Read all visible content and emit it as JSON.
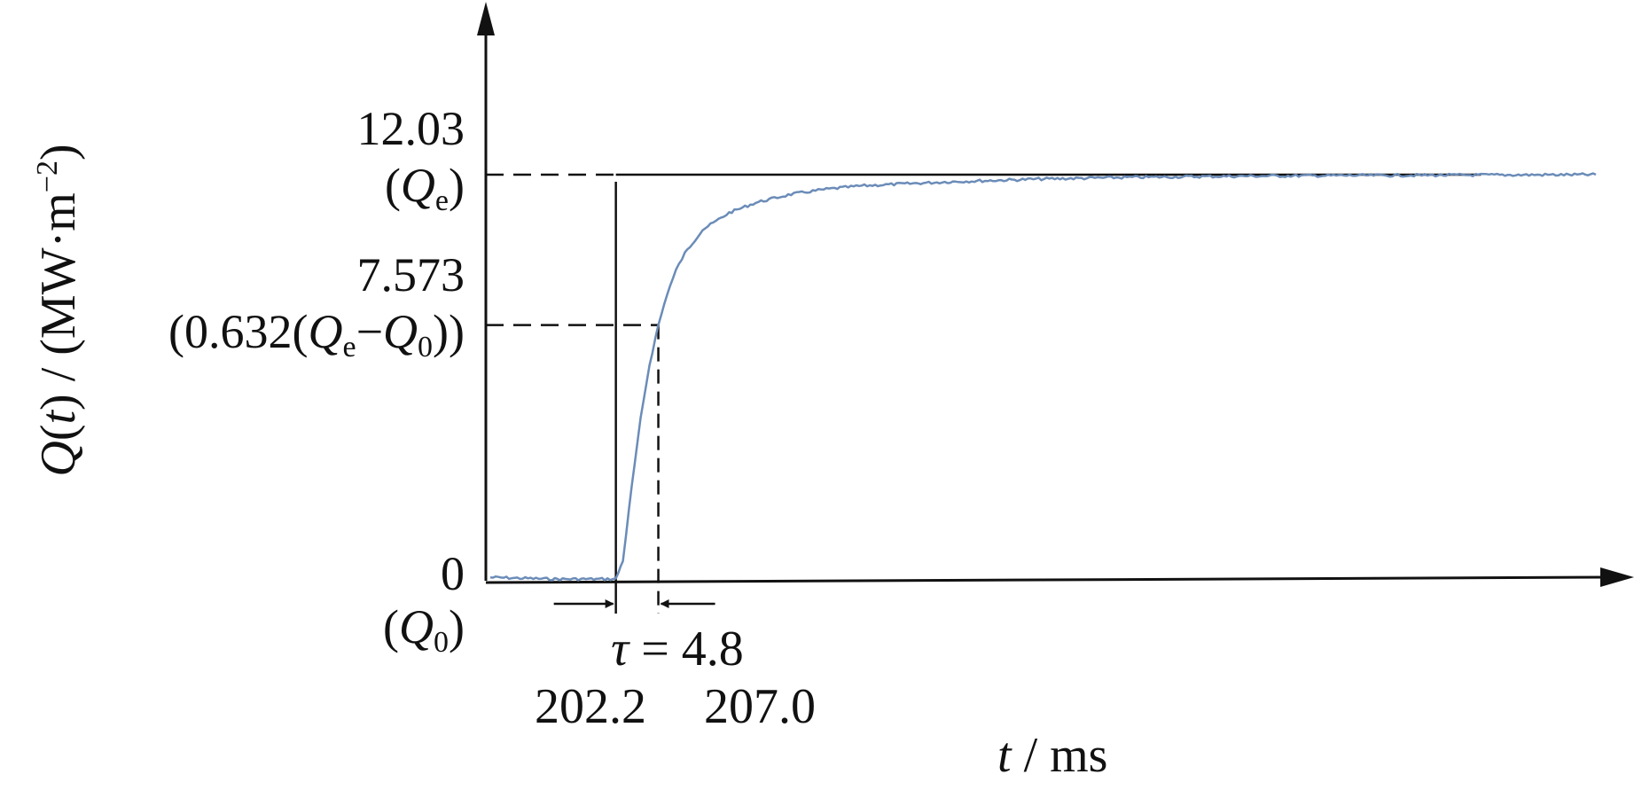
{
  "chart_data": {
    "type": "line",
    "ylabel": {
      "var": "Q",
      "paren_open": "(",
      "arg": "t",
      "paren_close": ")",
      "unit_open": " / (MW·m",
      "unit_exp": "−2",
      "unit_close": ")"
    },
    "xlabel": {
      "var": "t",
      "unit": " / ms"
    },
    "y_ticks": [
      {
        "value": "12.03",
        "note_open": "(",
        "note_var": "Q",
        "note_sub": "e",
        "note_close": ")"
      },
      {
        "value": "7.573",
        "note_text": "(0.632(",
        "note_var1": "Q",
        "note_sub1": "e",
        "note_minus": "−",
        "note_var2": "Q",
        "note_sub2": "0",
        "note_close": "))"
      },
      {
        "value": "0",
        "note_open": "(",
        "note_var": "Q",
        "note_sub": "0",
        "note_close": ")"
      }
    ],
    "x_ticks": [
      "202.2",
      "207.0"
    ],
    "tau_annotation": {
      "symbol": "τ",
      "text": " = 4.8"
    },
    "reference_values": {
      "Q0": 0,
      "Qe": 12.03,
      "Q_tau": 7.573,
      "t_start": 202.2,
      "t_tau": 207.0,
      "tau": 4.8
    },
    "xlim": [
      187.5,
      315
    ],
    "ylim": [
      0,
      17
    ],
    "series": [
      {
        "color": "#6b8cb8",
        "x": [
          188,
          195,
          200,
          202.2,
          203,
          204,
          205,
          206,
          207,
          208,
          209,
          210,
          212,
          215,
          218,
          222,
          226,
          230,
          240,
          250,
          260,
          270,
          280,
          290,
          300,
          313
        ],
        "y": [
          0.1,
          0.05,
          0.05,
          0.05,
          0.6,
          2.8,
          4.8,
          6.4,
          7.57,
          8.5,
          9.2,
          9.7,
          10.4,
          10.9,
          11.2,
          11.45,
          11.6,
          11.7,
          11.82,
          11.9,
          11.95,
          11.98,
          12.0,
          12.01,
          12.02,
          12.03
        ]
      }
    ],
    "grid": false
  }
}
